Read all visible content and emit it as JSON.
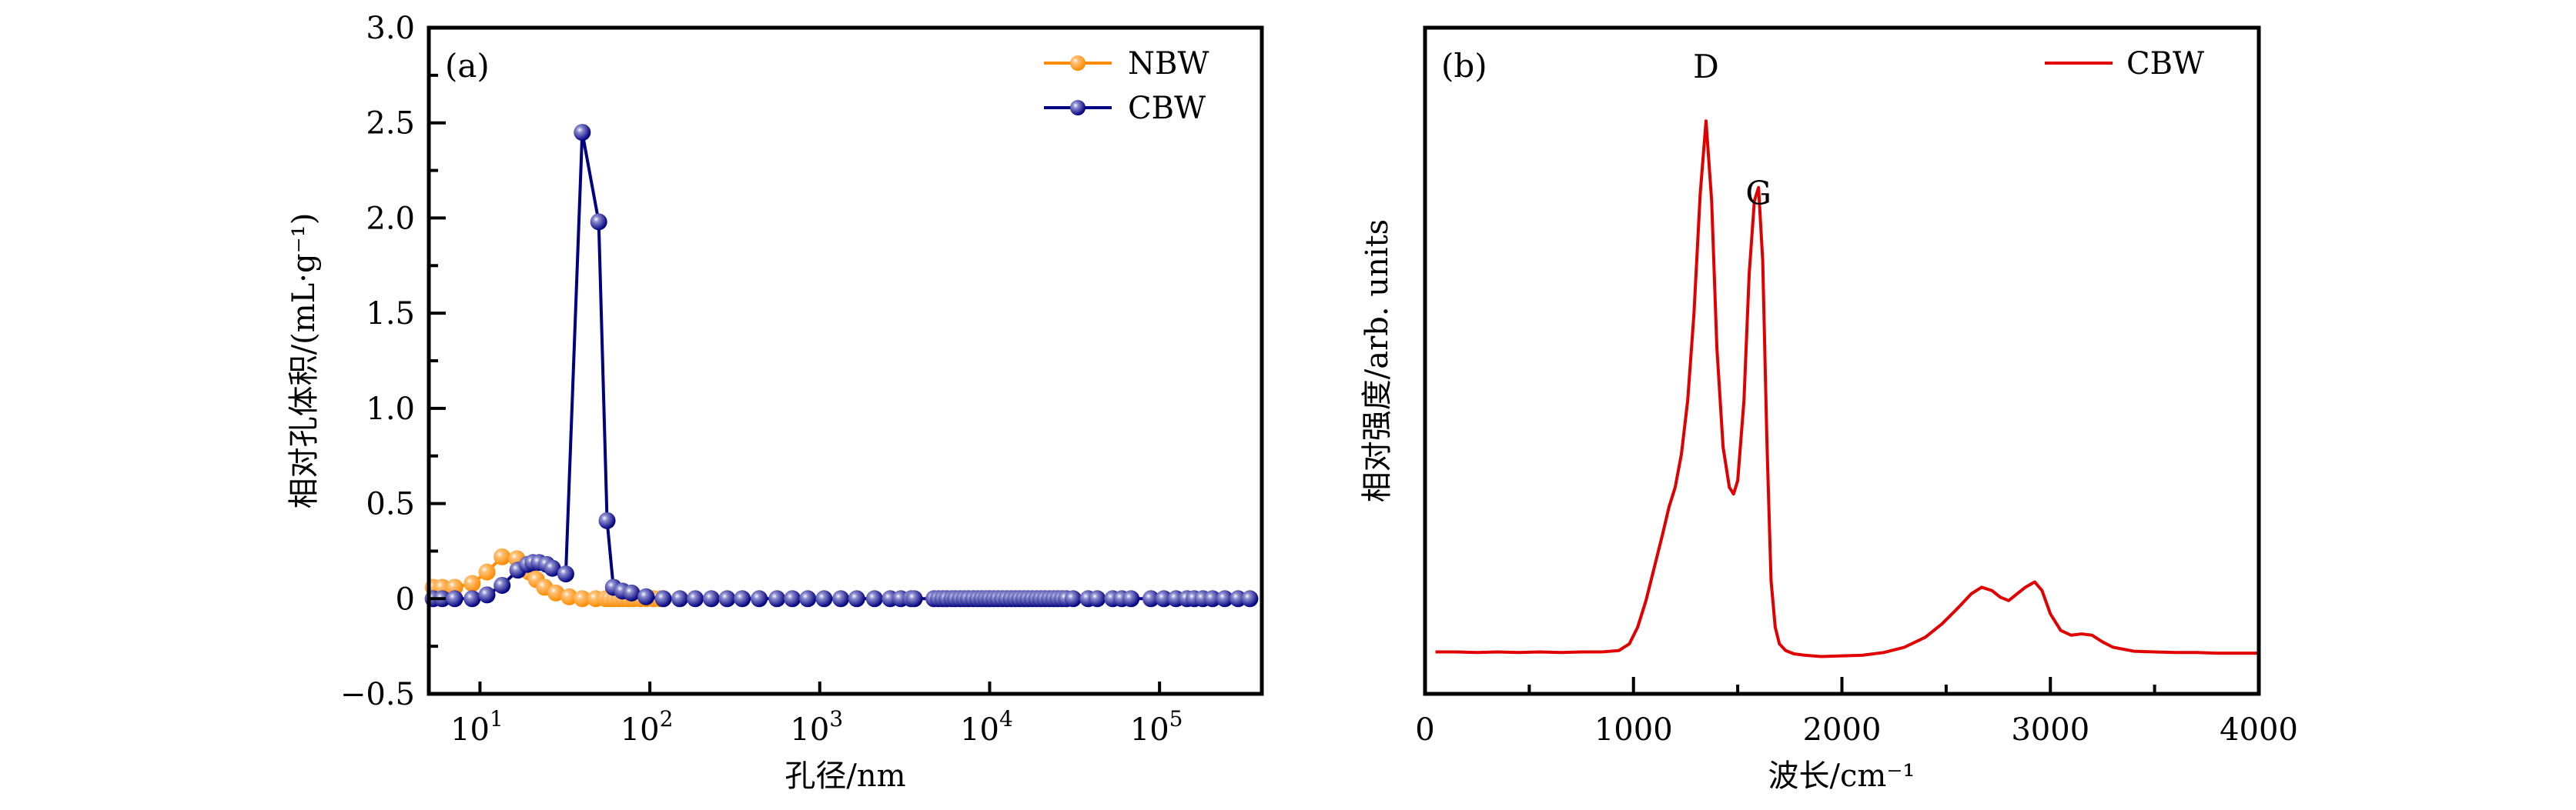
{
  "chart_data": [
    {
      "panel": "(a)",
      "type": "line",
      "xscale": "log",
      "xlabel": "孔径/nm",
      "ylabel": "相对孔体积/(mL·g⁻¹)",
      "xlim": [
        5,
        400000
      ],
      "ylim": [
        -0.5,
        3.0
      ],
      "xticks": [
        {
          "value": 10,
          "base": "10",
          "exp": "1"
        },
        {
          "value": 100,
          "base": "10",
          "exp": "2"
        },
        {
          "value": 1000,
          "base": "10",
          "exp": "3"
        },
        {
          "value": 10000,
          "base": "10",
          "exp": "4"
        },
        {
          "value": 100000,
          "base": "10",
          "exp": "5"
        }
      ],
      "yticks": [
        {
          "value": -0.5,
          "label": "−0.5"
        },
        {
          "value": 0,
          "label": "0"
        },
        {
          "value": 0.5,
          "label": "0.5"
        },
        {
          "value": 1.0,
          "label": "1.0"
        },
        {
          "value": 1.5,
          "label": "1.5"
        },
        {
          "value": 2.0,
          "label": "2.0"
        },
        {
          "value": 2.5,
          "label": "2.5"
        },
        {
          "value": 3.0,
          "label": "3.0"
        }
      ],
      "yminor": [
        -0.25,
        0.25,
        0.75,
        1.25,
        1.75,
        2.25,
        2.75
      ],
      "grid": false,
      "legend": "top-right",
      "series": [
        {
          "name": "NBW",
          "color": "#FF8C00",
          "marker": "sphere",
          "x": [
            5.3,
            6.0,
            7.1,
            9.0,
            11.0,
            13.5,
            16.5,
            19.5,
            21.5,
            24.0,
            28.0,
            33.5,
            40.0,
            48.0,
            55.0,
            58.0,
            62.0,
            66.0,
            70.0,
            75.0,
            80.0,
            88.0,
            95.0,
            105.0,
            115.0
          ],
          "y": [
            0.06,
            0.06,
            0.06,
            0.08,
            0.14,
            0.22,
            0.21,
            0.14,
            0.1,
            0.06,
            0.03,
            0.01,
            0.0,
            0.0,
            0.0,
            0.0,
            0.0,
            0.0,
            0.0,
            0.0,
            0.0,
            0.0,
            0.0,
            0.0,
            0.0
          ]
        },
        {
          "name": "CBW",
          "color": "#000080",
          "marker": "sphere",
          "x": [
            5.3,
            6.0,
            7.1,
            9.0,
            11.0,
            13.5,
            16.7,
            19.0,
            20.5,
            22.3,
            24.7,
            26.7,
            32.0,
            40.0,
            50.0,
            56.0,
            61.0,
            69.0,
            78.0,
            95.0,
            120,
            150,
            185,
            230,
            285,
            350,
            440,
            560,
            690,
            850,
            1060,
            1330,
            1650,
            2100,
            2600,
            3000,
            3450,
            3600,
            4700,
            5000,
            5300,
            5600,
            6000,
            6300,
            6700,
            7100,
            7500,
            8000,
            8500,
            9000,
            9500,
            10000,
            10600,
            11200,
            11900,
            12600,
            13400,
            14200,
            15000,
            15900,
            16800,
            17800,
            18900,
            20000,
            21200,
            22500,
            23800,
            25200,
            26700,
            28300,
            31000,
            38000,
            43000,
            53000,
            60000,
            68000,
            89000,
            106000,
            125000,
            145000,
            160000,
            180000,
            205000,
            242000,
            290000,
            340000
          ],
          "y": [
            0.0,
            0.0,
            0.0,
            0.0,
            0.02,
            0.07,
            0.15,
            0.18,
            0.19,
            0.19,
            0.18,
            0.16,
            0.13,
            2.45,
            1.98,
            0.41,
            0.06,
            0.04,
            0.03,
            0.01,
            0,
            0,
            0,
            0,
            0,
            0,
            0,
            0,
            0,
            0,
            0,
            0,
            0,
            0,
            0,
            0,
            0,
            0,
            0,
            0,
            0,
            0,
            0,
            0,
            0,
            0,
            0,
            0,
            0,
            0,
            0,
            0,
            0,
            0,
            0,
            0,
            0,
            0,
            0,
            0,
            0,
            0,
            0,
            0,
            0,
            0,
            0,
            0,
            0,
            0,
            0,
            0,
            0,
            0,
            0,
            0,
            0,
            0,
            0,
            0,
            0,
            0,
            0,
            0,
            0,
            0
          ]
        }
      ]
    },
    {
      "panel": "(b)",
      "type": "line",
      "xlabel": "波长/cm⁻¹",
      "ylabel": "相对强度/arb. units",
      "xlim": [
        0,
        4000
      ],
      "ylim": [
        0,
        1
      ],
      "xticks": [
        {
          "value": 0,
          "label": "0"
        },
        {
          "value": 1000,
          "label": "1000"
        },
        {
          "value": 2000,
          "label": "2000"
        },
        {
          "value": 3000,
          "label": "3000"
        },
        {
          "value": 4000,
          "label": "4000"
        }
      ],
      "xminor": [
        500,
        1500,
        2500,
        3500
      ],
      "yticks": [],
      "grid": false,
      "legend": "top-right",
      "annotations": [
        {
          "text": "D",
          "x": 1348,
          "y": 0.925
        },
        {
          "text": "G",
          "x": 1600,
          "y": 0.735
        }
      ],
      "series": [
        {
          "name": "CBW",
          "color": "#E00000",
          "x": [
            50,
            150,
            250,
            350,
            450,
            550,
            650,
            750,
            850,
            930,
            980,
            1020,
            1060,
            1100,
            1140,
            1170,
            1200,
            1230,
            1260,
            1290,
            1320,
            1348,
            1375,
            1400,
            1430,
            1460,
            1480,
            1500,
            1530,
            1555,
            1580,
            1600,
            1620,
            1640,
            1660,
            1680,
            1700,
            1730,
            1770,
            1820,
            1900,
            2000,
            2100,
            2200,
            2300,
            2400,
            2480,
            2560,
            2620,
            2670,
            2720,
            2760,
            2800,
            2840,
            2880,
            2925,
            2960,
            3000,
            3050,
            3100,
            3150,
            3200,
            3250,
            3300,
            3400,
            3500,
            3600,
            3700,
            3800,
            3900,
            4000
          ],
          "y": [
            0.063,
            0.063,
            0.062,
            0.063,
            0.062,
            0.063,
            0.062,
            0.063,
            0.063,
            0.065,
            0.075,
            0.1,
            0.14,
            0.19,
            0.24,
            0.28,
            0.31,
            0.36,
            0.44,
            0.57,
            0.75,
            0.86,
            0.74,
            0.52,
            0.37,
            0.31,
            0.3,
            0.32,
            0.44,
            0.63,
            0.74,
            0.76,
            0.65,
            0.38,
            0.17,
            0.1,
            0.075,
            0.065,
            0.06,
            0.058,
            0.056,
            0.057,
            0.058,
            0.062,
            0.07,
            0.085,
            0.105,
            0.13,
            0.15,
            0.16,
            0.155,
            0.145,
            0.14,
            0.15,
            0.16,
            0.168,
            0.155,
            0.12,
            0.095,
            0.088,
            0.09,
            0.088,
            0.078,
            0.07,
            0.064,
            0.063,
            0.062,
            0.062,
            0.061,
            0.061,
            0.061
          ]
        }
      ]
    }
  ]
}
